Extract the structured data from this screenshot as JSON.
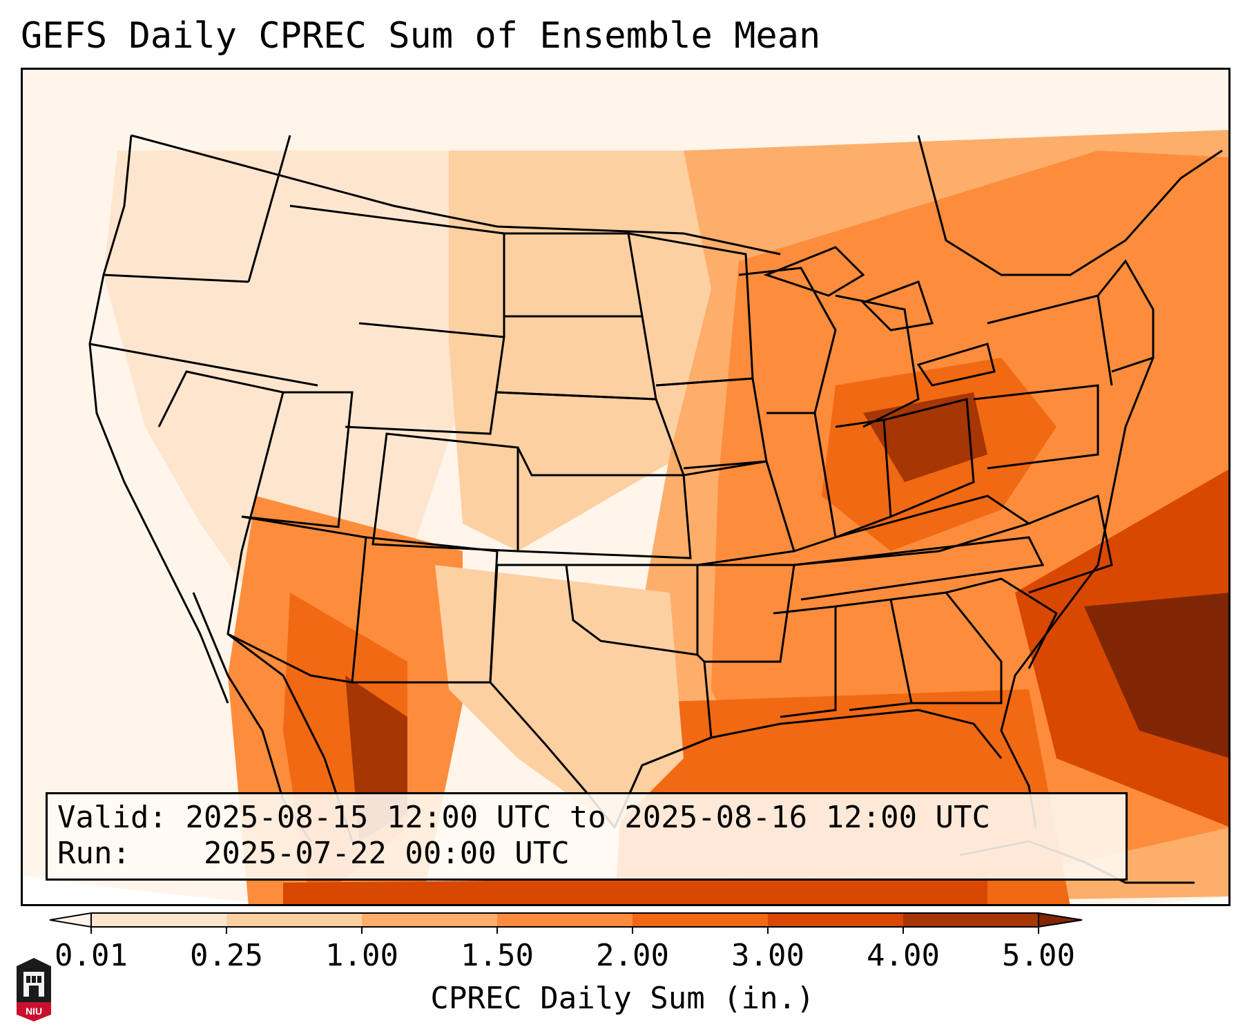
{
  "title": "GEFS Daily CPREC Sum of Ensemble Mean",
  "info": {
    "valid_label": "Valid:",
    "valid_value": "2025-08-15 12:00 UTC to 2025-08-16 12:00 UTC",
    "run_label": "Run:",
    "run_value": "2025-07-22 00:00 UTC"
  },
  "colorbar": {
    "label": "CPREC Daily Sum (in.)",
    "ticks": [
      "0.01",
      "0.25",
      "1.00",
      "1.50",
      "2.00",
      "3.00",
      "4.00",
      "5.00"
    ],
    "colors": [
      "#fff5eb",
      "#fee6ce",
      "#fdd0a2",
      "#fdae6b",
      "#fd8d3c",
      "#f16913",
      "#d94801",
      "#a63603",
      "#7f2704"
    ]
  },
  "logo": {
    "text": "NIU",
    "colors": {
      "red": "#c8102e",
      "dark": "#1a1a1a"
    }
  },
  "map": {
    "projection": "lambert-conformal",
    "region": "CONUS",
    "colors": {
      "ocean_fill": "#fde3c8",
      "boundary": "#000000"
    }
  }
}
